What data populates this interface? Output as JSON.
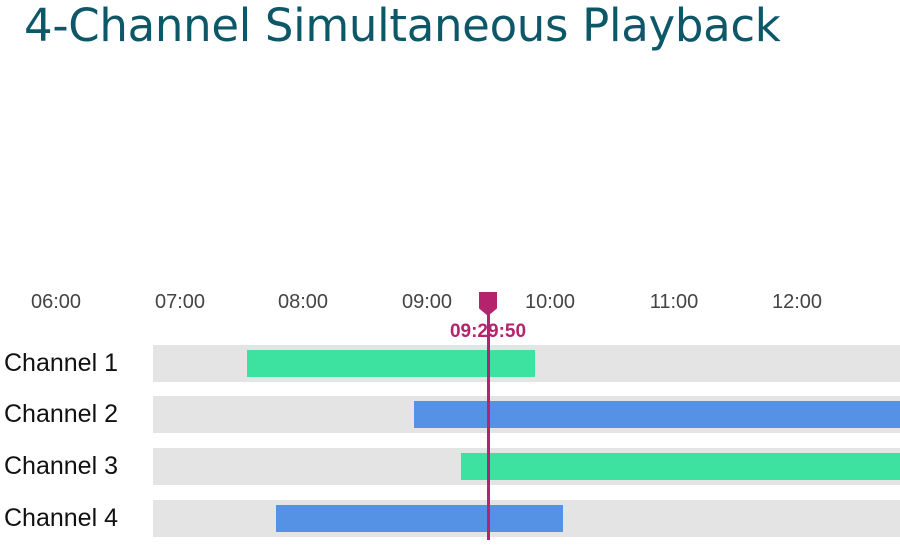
{
  "title": "4-Channel Simultaneous Playback",
  "timeline": {
    "start_time": "06:00",
    "end_time": "12:59",
    "ticks": [
      "06:00",
      "07:00",
      "08:00",
      "09:00",
      "10:00",
      "11:00",
      "12:00"
    ],
    "playhead": {
      "time": "09:29:50",
      "color": "#b3246c",
      "icon": "playhead-marker-icon"
    },
    "channels": [
      {
        "label": "Channel 1",
        "segment": {
          "start": "07:33",
          "end": "09:52"
        },
        "color": "#3de2a1"
      },
      {
        "label": "Channel 2",
        "segment": {
          "start": "08:54",
          "end": "12:59"
        },
        "color": "#5592e5"
      },
      {
        "label": "Channel 3",
        "segment": {
          "start": "09:17",
          "end": "12:59"
        },
        "color": "#3de2a1"
      },
      {
        "label": "Channel 4",
        "segment": {
          "start": "07:47",
          "end": "10:06"
        },
        "color": "#5592e5"
      }
    ]
  }
}
